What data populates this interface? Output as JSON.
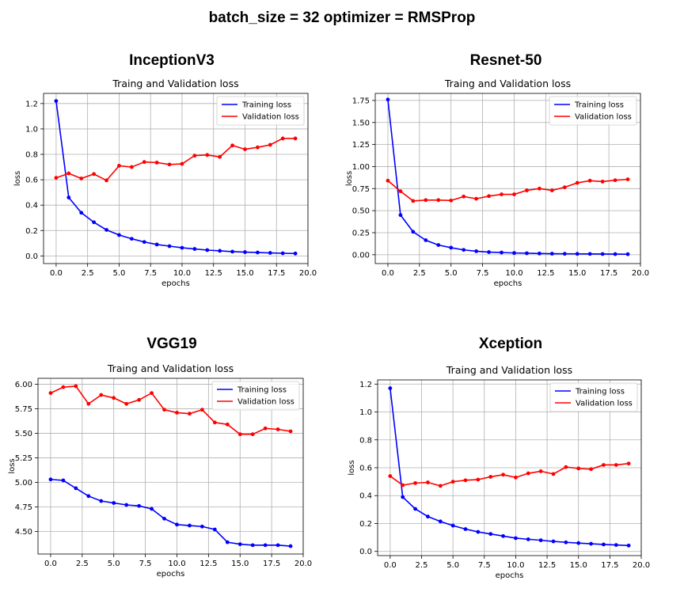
{
  "suptitle": "batch_size = 32    optimizer = RMSProp",
  "chart_data": [
    {
      "model": "InceptionV3",
      "type": "line",
      "title": "Traing and Validation loss",
      "xlabel": "epochs",
      "ylabel": "loss",
      "xlim": [
        -1,
        20
      ],
      "ylim": [
        -0.06,
        1.28
      ],
      "xticks": [
        0.0,
        2.5,
        5.0,
        7.5,
        10.0,
        12.5,
        15.0,
        17.5,
        20.0
      ],
      "xtick_labels": [
        "0.0",
        "2.5",
        "5.0",
        "7.5",
        "10.0",
        "12.5",
        "15.0",
        "17.5",
        "20.0"
      ],
      "yticks": [
        0.0,
        0.2,
        0.4,
        0.6,
        0.8,
        1.0,
        1.2
      ],
      "ytick_labels": [
        "0.0",
        "0.2",
        "0.4",
        "0.6",
        "0.8",
        "1.0",
        "1.2"
      ],
      "grid": true,
      "legend": "top-right",
      "x": [
        0,
        1,
        2,
        3,
        4,
        5,
        6,
        7,
        8,
        9,
        10,
        11,
        12,
        13,
        14,
        15,
        16,
        17,
        18,
        19
      ],
      "series": [
        {
          "name": "Training loss",
          "color": "#0000ff",
          "values": [
            1.22,
            0.46,
            0.34,
            0.265,
            0.205,
            0.165,
            0.135,
            0.11,
            0.09,
            0.077,
            0.064,
            0.055,
            0.046,
            0.04,
            0.034,
            0.03,
            0.027,
            0.024,
            0.021,
            0.019
          ]
        },
        {
          "name": "Validation loss",
          "color": "#ff0000",
          "values": [
            0.615,
            0.65,
            0.61,
            0.645,
            0.595,
            0.71,
            0.7,
            0.74,
            0.735,
            0.72,
            0.725,
            0.79,
            0.795,
            0.78,
            0.87,
            0.84,
            0.855,
            0.875,
            0.925,
            0.925
          ]
        }
      ]
    },
    {
      "model": "Resnet-50",
      "type": "line",
      "title": "Traing and Validation loss",
      "xlabel": "epochs",
      "ylabel": "loss",
      "xlim": [
        -1,
        20
      ],
      "ylim": [
        -0.1,
        1.83
      ],
      "xticks": [
        0.0,
        2.5,
        5.0,
        7.5,
        10.0,
        12.5,
        15.0,
        17.5,
        20.0
      ],
      "xtick_labels": [
        "0.0",
        "2.5",
        "5.0",
        "7.5",
        "10.0",
        "12.5",
        "15.0",
        "17.5",
        "20.0"
      ],
      "yticks": [
        0.0,
        0.25,
        0.5,
        0.75,
        1.0,
        1.25,
        1.5,
        1.75
      ],
      "ytick_labels": [
        "0.00",
        "0.25",
        "0.50",
        "0.75",
        "1.00",
        "1.25",
        "1.50",
        "1.75"
      ],
      "grid": true,
      "legend": "top-right",
      "x": [
        0,
        1,
        2,
        3,
        4,
        5,
        6,
        7,
        8,
        9,
        10,
        11,
        12,
        13,
        14,
        15,
        16,
        17,
        18,
        19
      ],
      "series": [
        {
          "name": "Training loss",
          "color": "#0000ff",
          "values": [
            1.76,
            0.45,
            0.26,
            0.165,
            0.11,
            0.08,
            0.055,
            0.04,
            0.03,
            0.025,
            0.02,
            0.017,
            0.014,
            0.012,
            0.011,
            0.01,
            0.009,
            0.008,
            0.007,
            0.006
          ]
        },
        {
          "name": "Validation loss",
          "color": "#ff0000",
          "values": [
            0.84,
            0.72,
            0.61,
            0.62,
            0.62,
            0.615,
            0.66,
            0.635,
            0.665,
            0.685,
            0.685,
            0.73,
            0.75,
            0.73,
            0.765,
            0.815,
            0.84,
            0.83,
            0.845,
            0.855
          ]
        }
      ]
    },
    {
      "model": "VGG19",
      "type": "line",
      "title": "Traing and Validation loss",
      "xlabel": "epochs",
      "ylabel": "loss",
      "xlim": [
        -1,
        20
      ],
      "ylim": [
        4.27,
        6.06
      ],
      "xticks": [
        0.0,
        2.5,
        5.0,
        7.5,
        10.0,
        12.5,
        15.0,
        17.5,
        20.0
      ],
      "xtick_labels": [
        "0.0",
        "2.5",
        "5.0",
        "7.5",
        "10.0",
        "12.5",
        "15.0",
        "17.5",
        "20.0"
      ],
      "yticks": [
        4.5,
        4.75,
        5.0,
        5.25,
        5.5,
        5.75,
        6.0
      ],
      "ytick_labels": [
        "4.50",
        "4.75",
        "5.00",
        "5.25",
        "5.50",
        "5.75",
        "6.00"
      ],
      "grid": true,
      "legend": "top-right",
      "x": [
        0,
        1,
        2,
        3,
        4,
        5,
        6,
        7,
        8,
        9,
        10,
        11,
        12,
        13,
        14,
        15,
        16,
        17,
        18,
        19
      ],
      "series": [
        {
          "name": "Training loss",
          "color": "#0000ff",
          "values": [
            5.03,
            5.02,
            4.94,
            4.86,
            4.81,
            4.79,
            4.77,
            4.76,
            4.73,
            4.63,
            4.57,
            4.56,
            4.55,
            4.52,
            4.39,
            4.37,
            4.36,
            4.36,
            4.36,
            4.35
          ]
        },
        {
          "name": "Validation loss",
          "color": "#ff0000",
          "values": [
            5.91,
            5.97,
            5.98,
            5.8,
            5.89,
            5.86,
            5.8,
            5.84,
            5.91,
            5.74,
            5.71,
            5.7,
            5.74,
            5.61,
            5.59,
            5.49,
            5.49,
            5.55,
            5.54,
            5.52
          ]
        }
      ]
    },
    {
      "model": "Xception",
      "type": "line",
      "title": "Traing and Validation loss",
      "xlabel": "epochs",
      "ylabel": "loss",
      "xlim": [
        -1,
        20
      ],
      "ylim": [
        -0.03,
        1.23
      ],
      "xticks": [
        0.0,
        2.5,
        5.0,
        7.5,
        10.0,
        12.5,
        15.0,
        17.5,
        20.0
      ],
      "xtick_labels": [
        "0.0",
        "2.5",
        "5.0",
        "7.5",
        "10.0",
        "12.5",
        "15.0",
        "17.5",
        "20.0"
      ],
      "yticks": [
        0.0,
        0.2,
        0.4,
        0.6,
        0.8,
        1.0,
        1.2
      ],
      "ytick_labels": [
        "0.0",
        "0.2",
        "0.4",
        "0.6",
        "0.8",
        "1.0",
        "1.2"
      ],
      "grid": true,
      "legend": "top-right",
      "x": [
        0,
        1,
        2,
        3,
        4,
        5,
        6,
        7,
        8,
        9,
        10,
        11,
        12,
        13,
        14,
        15,
        16,
        17,
        18,
        19
      ],
      "series": [
        {
          "name": "Training loss",
          "color": "#0000ff",
          "values": [
            1.17,
            0.39,
            0.305,
            0.25,
            0.215,
            0.185,
            0.16,
            0.14,
            0.125,
            0.11,
            0.095,
            0.087,
            0.08,
            0.072,
            0.065,
            0.06,
            0.055,
            0.05,
            0.046,
            0.042
          ]
        },
        {
          "name": "Validation loss",
          "color": "#ff0000",
          "values": [
            0.54,
            0.475,
            0.49,
            0.495,
            0.47,
            0.5,
            0.51,
            0.515,
            0.535,
            0.55,
            0.53,
            0.56,
            0.575,
            0.555,
            0.605,
            0.595,
            0.59,
            0.62,
            0.62,
            0.63
          ]
        }
      ]
    }
  ]
}
